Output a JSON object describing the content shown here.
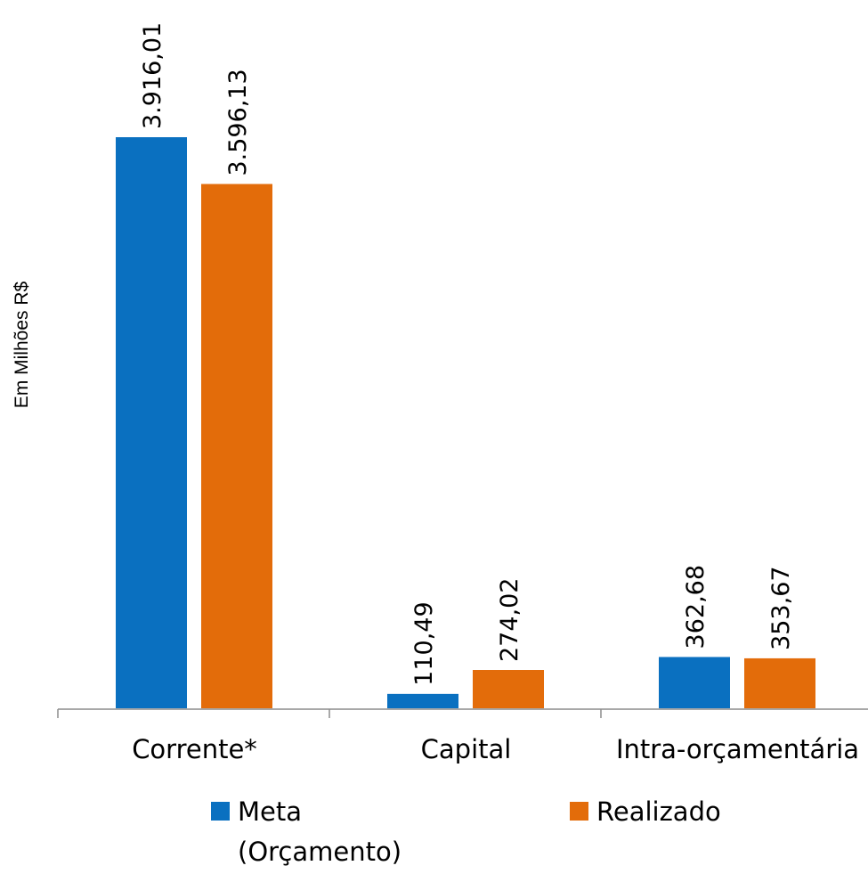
{
  "chart_data": {
    "type": "bar",
    "ylabel": "Em Milhões R$",
    "categories": [
      "Corrente*",
      "Capital",
      "Intra-orçamentária"
    ],
    "series": [
      {
        "name": "Meta (Orçamento)",
        "legend_lines": [
          "Meta",
          "(Orçamento)"
        ],
        "color": "#0a70c0",
        "values": [
          3916.01,
          110.49,
          362.68
        ],
        "labels": [
          "3.916,01",
          "110,49",
          "362,68"
        ]
      },
      {
        "name": "Realizado",
        "legend_lines": [
          "Realizado"
        ],
        "color": "#e36c0a",
        "values": [
          3596.13,
          274.02,
          353.67
        ],
        "labels": [
          "3.596,13",
          "274,02",
          "353,67"
        ]
      }
    ],
    "grid": false,
    "legend": "bottom"
  }
}
